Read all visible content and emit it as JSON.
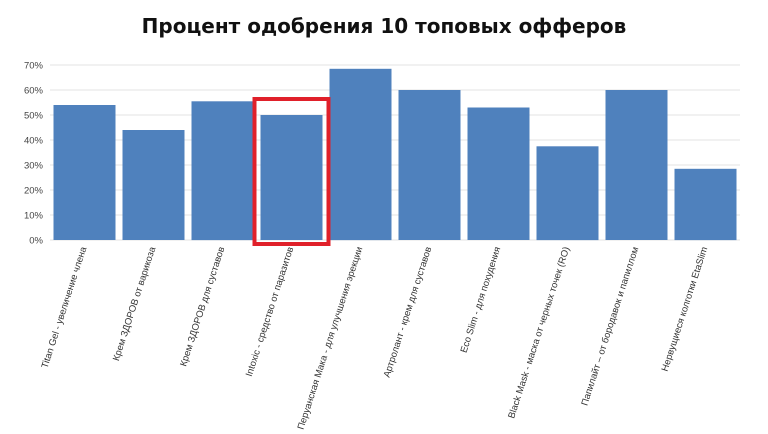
{
  "chart_data": {
    "type": "bar",
    "title": "Процент одобрения 10 топовых офферов",
    "xlabel": "",
    "ylabel": "",
    "ylim": [
      0,
      70
    ],
    "yticks": [
      "0%",
      "10%",
      "20%",
      "30%",
      "40%",
      "50%",
      "60%",
      "70%"
    ],
    "grid": true,
    "categories": [
      "Titan Gel - увеличение члена",
      "Крем ЗДОРОВ от варикоза",
      "Крем ЗДОРОВ для суставов",
      "Intoxic - средство от паразитов",
      "Перуанская Мака - для улучшения эрекции",
      "Артролант - крем для суставов",
      "Eco Slim - для похудения",
      "Black Mask - маска от черных точек (RO)",
      "Папилайт – от бородавок и папиллом",
      "Нервущиеся колготки EtaSlim"
    ],
    "values": [
      54,
      44,
      55.5,
      50,
      68.5,
      60,
      53,
      37.5,
      60,
      28.5
    ],
    "highlighted_category": "Intoxic - средство от паразитов",
    "colors": {
      "bar": "#4f81bd",
      "highlight": "#e0202a",
      "grid": "#e3e3e3"
    }
  }
}
